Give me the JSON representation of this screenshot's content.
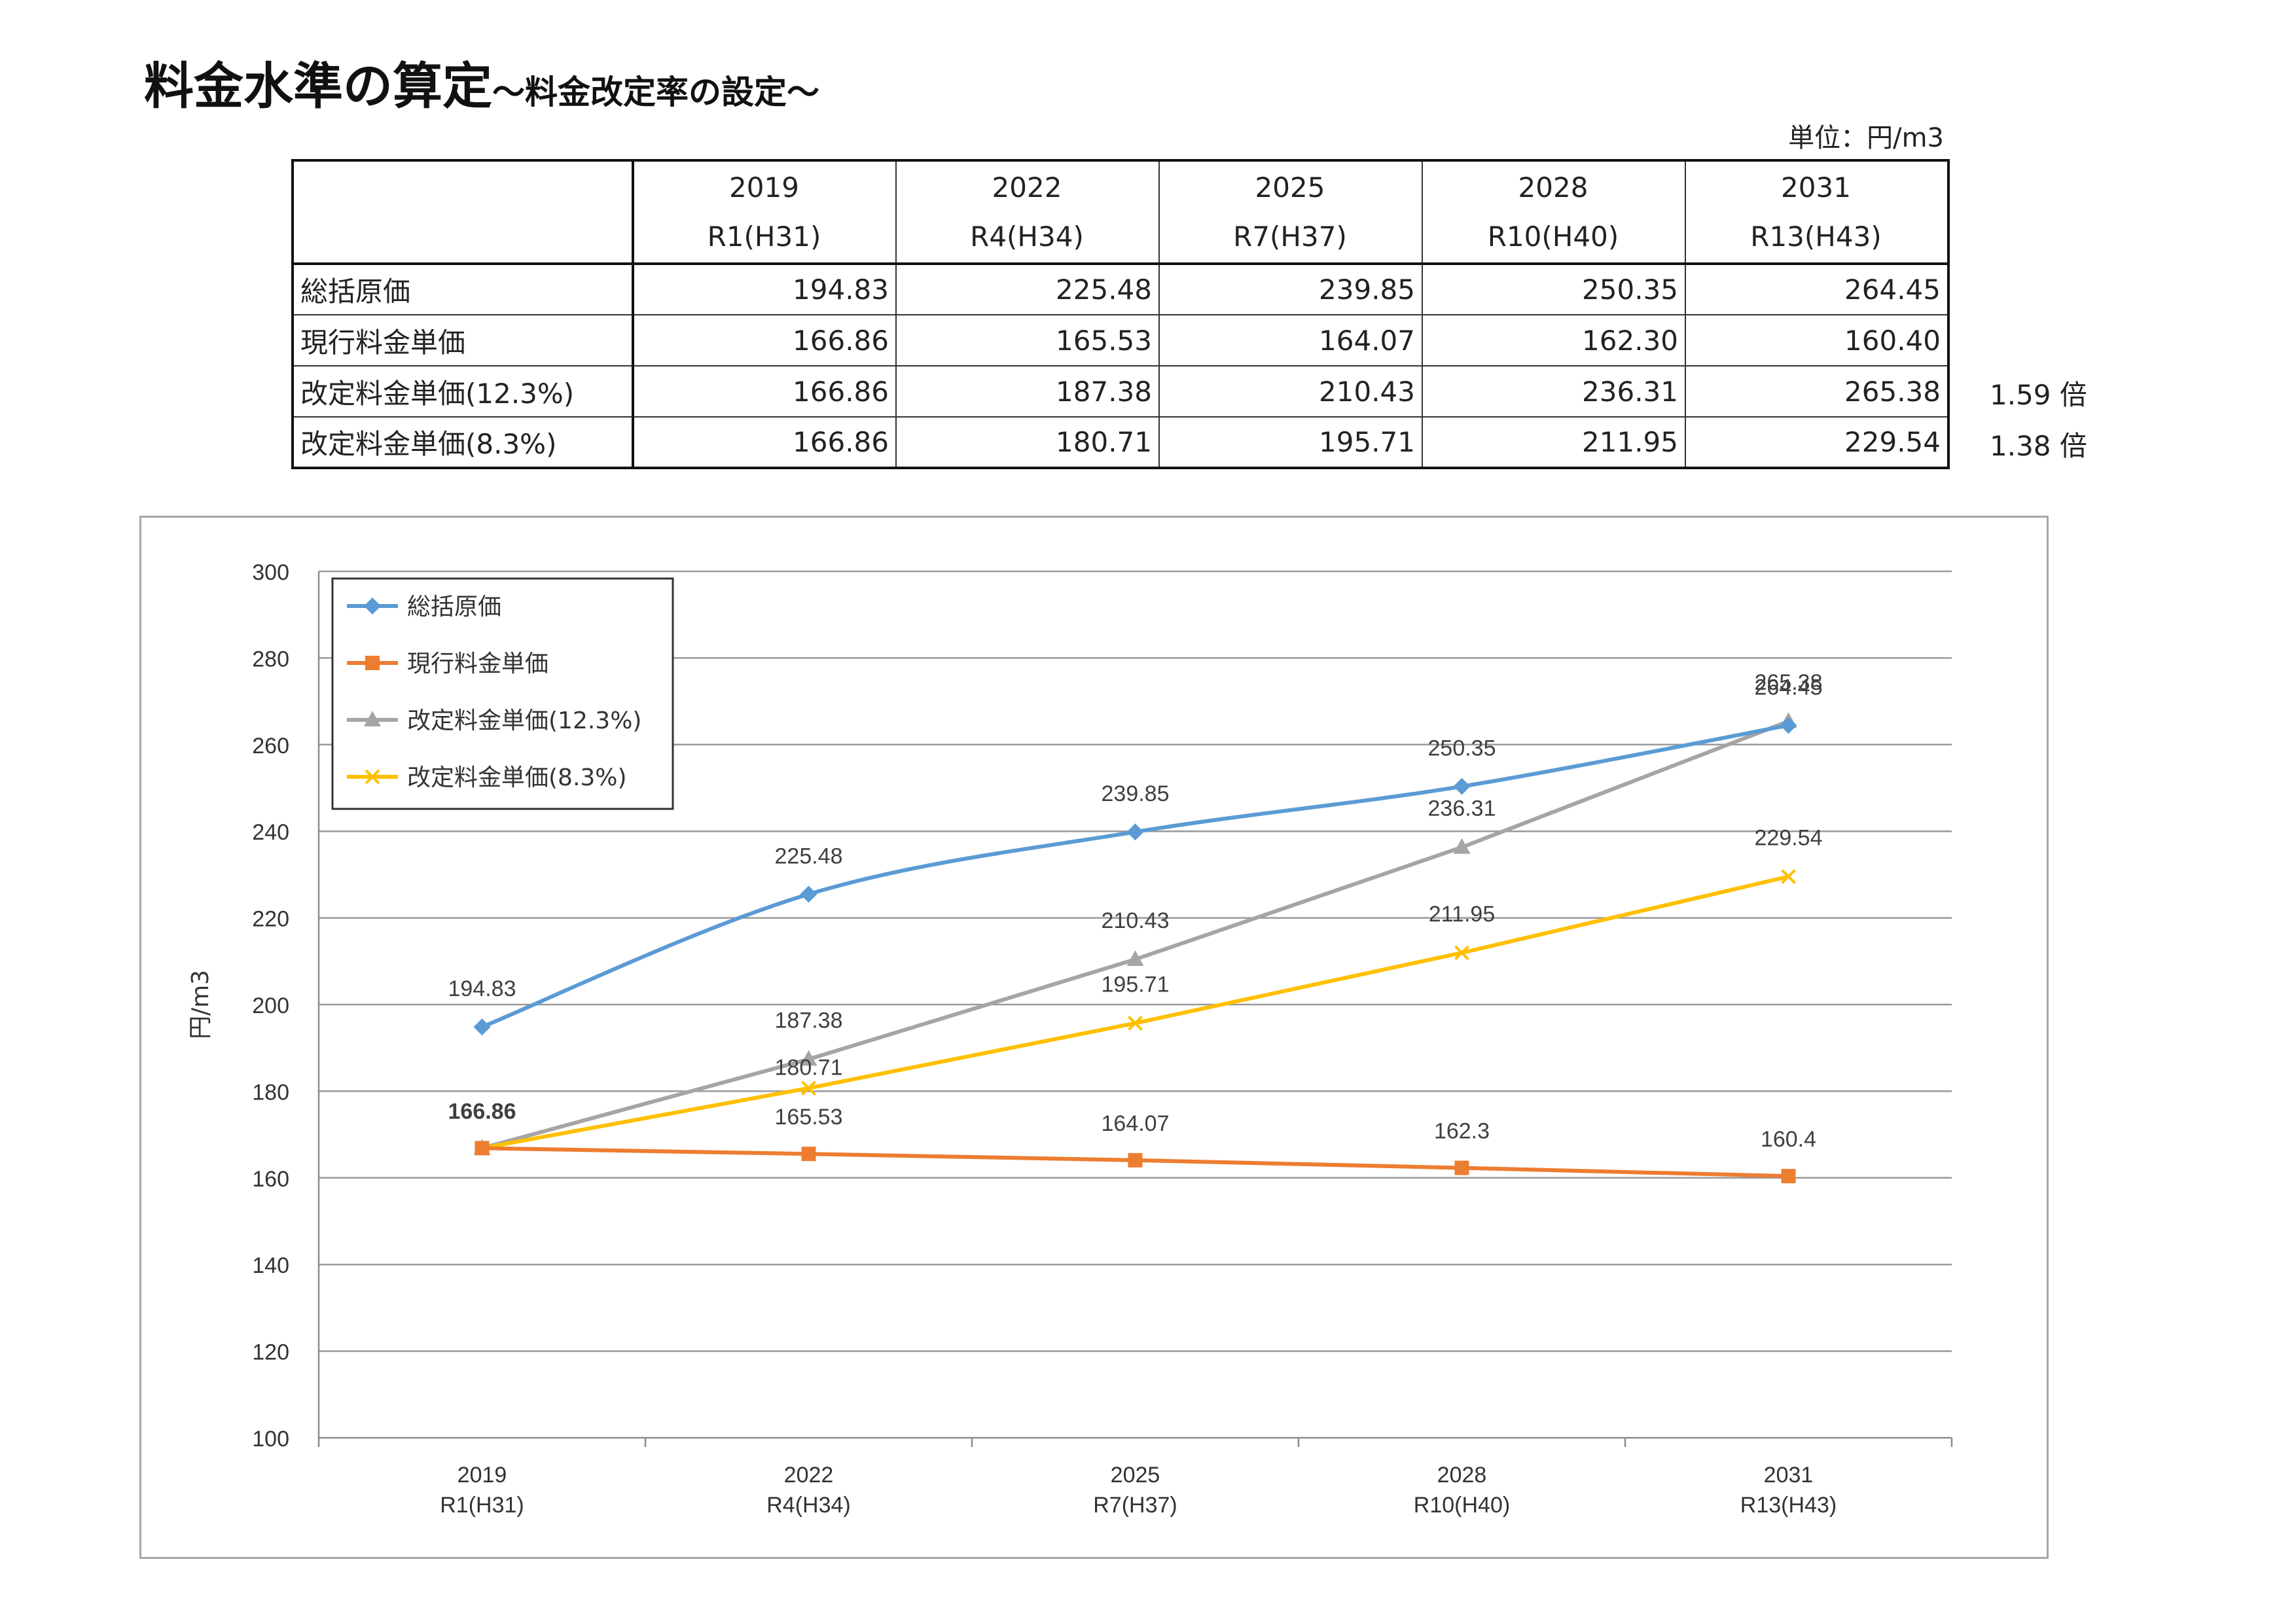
{
  "title": {
    "main": "料金水準の算定",
    "sub": "～料金改定率の設定～"
  },
  "unit_label": "単位：円/m3",
  "table": {
    "columns": [
      {
        "year": "2019",
        "era": "R1(H31)"
      },
      {
        "year": "2022",
        "era": "R4(H34)"
      },
      {
        "year": "2025",
        "era": "R7(H37)"
      },
      {
        "year": "2028",
        "era": "R10(H40)"
      },
      {
        "year": "2031",
        "era": "R13(H43)"
      }
    ],
    "rows": [
      {
        "label": "総括原価",
        "values": [
          "194.83",
          "225.48",
          "239.85",
          "250.35",
          "264.45"
        ],
        "ratio": ""
      },
      {
        "label": "現行料金単価",
        "values": [
          "166.86",
          "165.53",
          "164.07",
          "162.30",
          "160.40"
        ],
        "ratio": ""
      },
      {
        "label": "改定料金単価(12.3%)",
        "values": [
          "166.86",
          "187.38",
          "210.43",
          "236.31",
          "265.38"
        ],
        "ratio": "1.59 倍"
      },
      {
        "label": "改定料金単価(8.3%)",
        "values": [
          "166.86",
          "180.71",
          "195.71",
          "211.95",
          "229.54"
        ],
        "ratio": "1.38 倍"
      }
    ]
  },
  "chart_data": {
    "type": "line",
    "categories": [
      "2019",
      "2022",
      "2025",
      "2028",
      "2031"
    ],
    "category_sublabels": [
      "R1(H31)",
      "R4(H34)",
      "R7(H37)",
      "R10(H40)",
      "R13(H43)"
    ],
    "ylabel": "円/m3",
    "ylim": [
      100,
      300
    ],
    "yticks": [
      100,
      120,
      140,
      160,
      180,
      200,
      220,
      240,
      260,
      280,
      300
    ],
    "grid": true,
    "legend_position": "top-left",
    "series": [
      {
        "name": "総括原価",
        "color": "#5b9bd5",
        "marker": "diamond",
        "smooth": true,
        "values": [
          194.83,
          225.48,
          239.85,
          250.35,
          264.45
        ],
        "labels": [
          "194.83",
          "225.48",
          "239.85",
          "250.35",
          "264.45"
        ]
      },
      {
        "name": "現行料金単価",
        "color": "#ed7d31",
        "marker": "square",
        "smooth": false,
        "values": [
          166.86,
          165.53,
          164.07,
          162.3,
          160.4
        ],
        "labels": [
          "166.86",
          "165.53",
          "164.07",
          "162.3",
          "160.4"
        ]
      },
      {
        "name": "改定料金単価(12.3%)",
        "color": "#a5a5a5",
        "marker": "triangle",
        "smooth": false,
        "values": [
          166.86,
          187.38,
          210.43,
          236.31,
          265.38
        ],
        "labels": [
          "166.86",
          "187.38",
          "210.43",
          "236.31",
          "265.38"
        ]
      },
      {
        "name": "改定料金単価(8.3%)",
        "color": "#ffc000",
        "marker": "x",
        "smooth": false,
        "values": [
          166.86,
          180.71,
          195.71,
          211.95,
          229.54
        ],
        "labels": [
          "166.86",
          "180.71",
          "195.71",
          "211.95",
          "229.54"
        ]
      }
    ]
  }
}
